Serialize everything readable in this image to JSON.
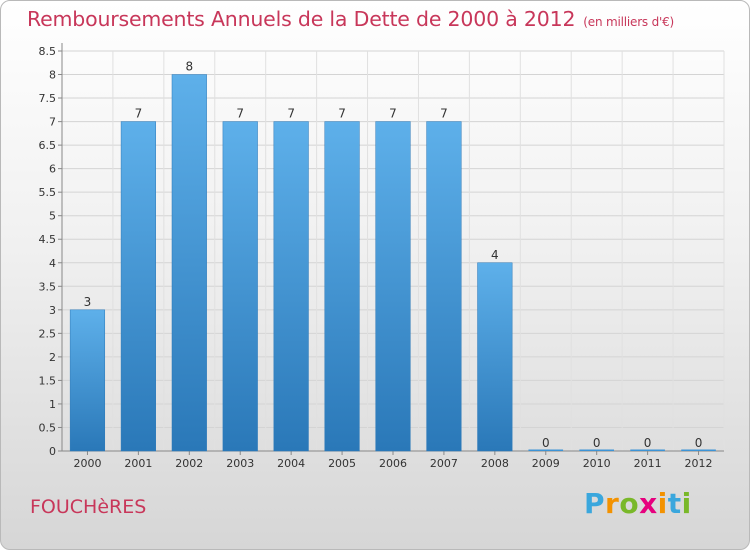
{
  "title": "Remboursements Annuels de la Dette de 2000 à 2012",
  "subtitle": "(en milliers d'€)",
  "commune": "FOUCHèRES",
  "logo": {
    "letters": [
      "P",
      "r",
      "o",
      "x",
      "i",
      "t",
      "i"
    ],
    "colors": [
      "#3aa7dd",
      "#f39200",
      "#79b829",
      "#e6007e",
      "#f39200",
      "#3aa7dd",
      "#79b829"
    ]
  },
  "colors": {
    "bar": "#3d94d6",
    "bar_light": "#5eb0ea",
    "bar_dark": "#2a78b8",
    "text": "#c8375a"
  },
  "chart_data": {
    "type": "bar",
    "categories": [
      "2000",
      "2001",
      "2002",
      "2003",
      "2004",
      "2005",
      "2006",
      "2007",
      "2008",
      "2009",
      "2010",
      "2011",
      "2012"
    ],
    "values": [
      3,
      7,
      8,
      7,
      7,
      7,
      7,
      7,
      4,
      0,
      0,
      0,
      0
    ],
    "data_labels": [
      "3",
      "7",
      "8",
      "7",
      "7",
      "7",
      "7",
      "7",
      "4",
      "0",
      "0",
      "0",
      "0"
    ],
    "yticks": [
      "0",
      "0.5",
      "1",
      "1.5",
      "2",
      "2.5",
      "3",
      "3.5",
      "4",
      "4.5",
      "5",
      "5.5",
      "6",
      "6.5",
      "7",
      "7.5",
      "8",
      "8.5"
    ],
    "ylim": [
      0,
      8.5
    ],
    "grid": true
  }
}
